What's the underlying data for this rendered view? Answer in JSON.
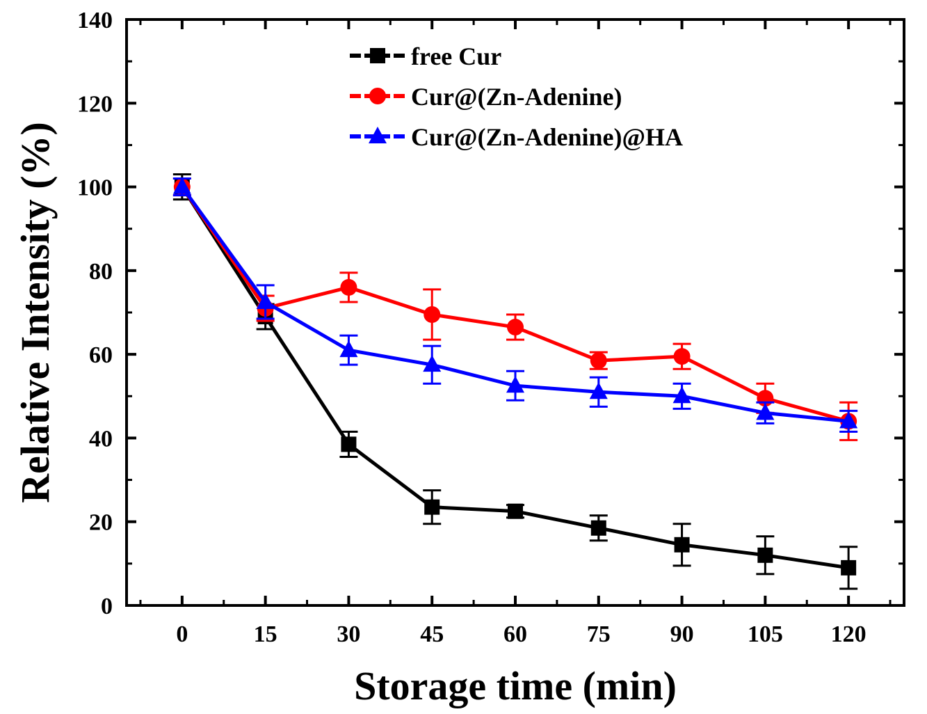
{
  "chart_data": {
    "type": "line",
    "title": "",
    "xlabel": "Storage time (min)",
    "ylabel": "Relative Intensity (%)",
    "x": [
      0,
      15,
      30,
      45,
      60,
      75,
      90,
      105,
      120
    ],
    "x_tick_labels": [
      "0",
      "15",
      "30",
      "45",
      "60",
      "75",
      "90",
      "105",
      "120"
    ],
    "y_tick_labels": [
      "0",
      "20",
      "40",
      "60",
      "80",
      "100",
      "120",
      "140"
    ],
    "xlim": [
      -10,
      130
    ],
    "ylim": [
      0,
      140
    ],
    "grid": false,
    "legend_position": "top-center",
    "series": [
      {
        "name": "free Cur",
        "color": "#000000",
        "marker": "square",
        "values": [
          100,
          69,
          38.5,
          23.5,
          22.5,
          18.5,
          14.5,
          12,
          9
        ],
        "errors": [
          3,
          3,
          3,
          4,
          1.5,
          3,
          5,
          4.5,
          5
        ]
      },
      {
        "name": "Cur@(Zn-Adenine)",
        "color": "#ff0000",
        "marker": "circle",
        "values": [
          100,
          71,
          76,
          69.5,
          66.5,
          58.5,
          59.5,
          49.5,
          44
        ],
        "errors": [
          2,
          3,
          3.5,
          6,
          3,
          2,
          3,
          3.5,
          4.5
        ]
      },
      {
        "name": "Cur@(Zn-Adenine)@HA",
        "color": "#0000ff",
        "marker": "triangle",
        "values": [
          100,
          72.5,
          61,
          57.5,
          52.5,
          51,
          50,
          46,
          44
        ],
        "errors": [
          2,
          4,
          3.5,
          4.5,
          3.5,
          3.5,
          3,
          2.5,
          2.5
        ]
      }
    ]
  }
}
